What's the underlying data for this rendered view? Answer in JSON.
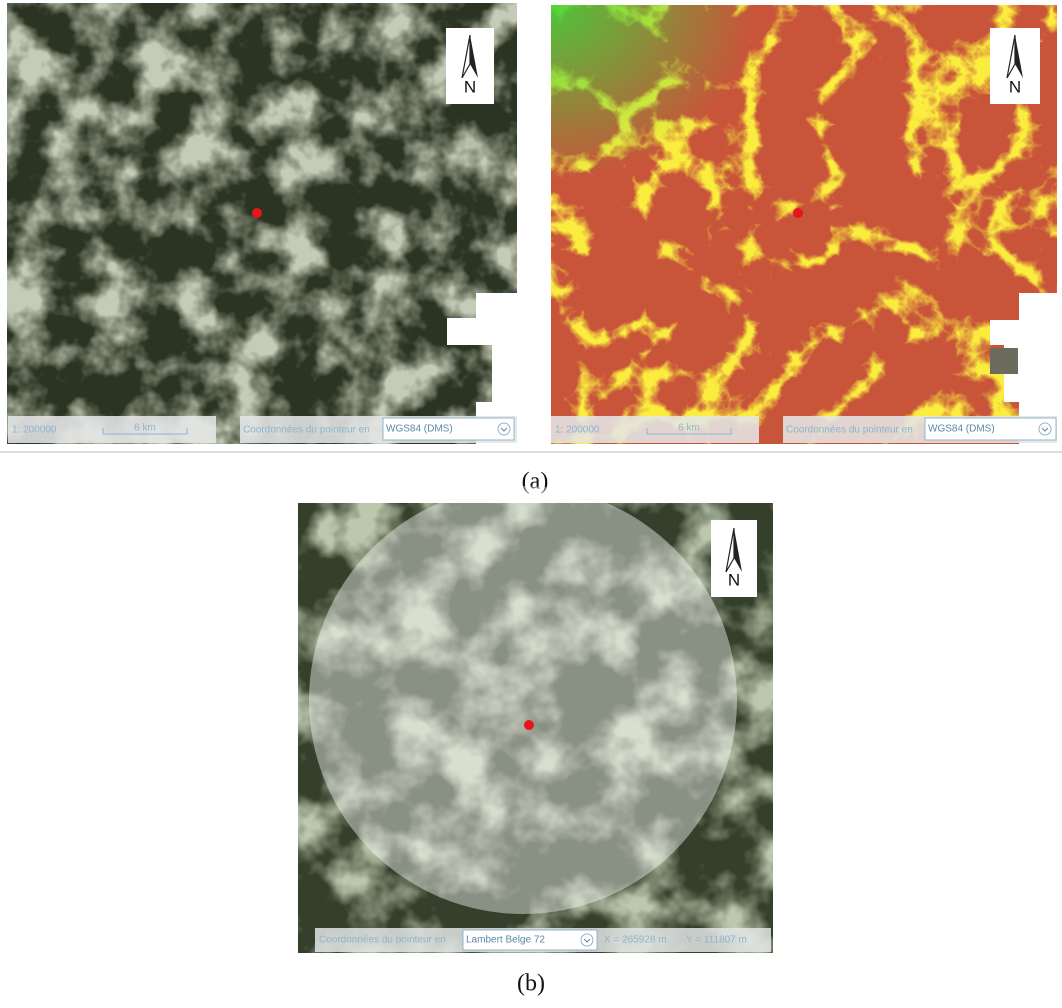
{
  "figure_a": {
    "caption": "(a)",
    "left_map": {
      "north": "N",
      "scale": "1: 200000",
      "scale_bar": "6 km",
      "pointer_label": "Coordonnées du pointeur en",
      "projection": "WGS84 (DMS)"
    },
    "right_map": {
      "north": "N",
      "scale": "1: 200000",
      "scale_bar": "6 km",
      "pointer_label": "Coordonnées du pointeur en",
      "projection": "WGS84 (DMS)"
    }
  },
  "figure_b": {
    "caption": "(b)",
    "map": {
      "north": "N",
      "pointer_label": "Coordonnées du pointeur en",
      "projection": "Lambert Belge 72",
      "x_coord": "X = 265928 m",
      "y_coord": "Y = 111807 m"
    }
  }
}
